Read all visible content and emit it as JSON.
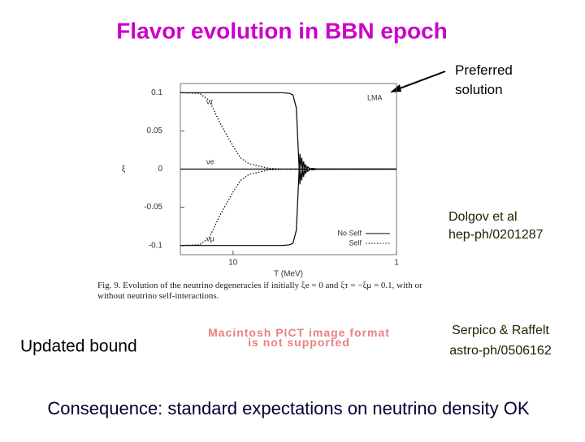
{
  "title": "Flavor evolution in BBN epoch",
  "note": "Preferred solution",
  "refs": [
    {
      "authors": "Dolgov et al",
      "id": "hep-ph/0201287"
    },
    {
      "authors": "Serpico & Raffelt",
      "id": "astro-ph/0506162"
    }
  ],
  "left_label": "Updated bound",
  "placeholder": "Macintosh PICT image format is not supported",
  "conclusion": "Consequence: standard expectations on neutrino density OK",
  "figure": {
    "caption": "Fig. 9. Evolution of the neutrino degeneracies if initially ξe = 0 and ξτ = −ξμ = 0.1, with or without neutrino self-interactions.",
    "chart_data": {
      "type": "line",
      "xlabel": "T (MeV)",
      "ylabel": "ξ",
      "log_x": true,
      "xlim": [
        21,
        1
      ],
      "xticks": [
        10,
        1
      ],
      "ylim": [
        -0.112,
        0.112
      ],
      "yticks": [
        0.1,
        0.05,
        0,
        -0.05,
        -0.1
      ],
      "x": [
        21,
        16,
        14,
        12,
        10,
        9,
        8,
        6,
        5,
        4.5,
        4.3,
        4.1,
        4.0,
        3.9,
        3.8,
        3.7,
        3.6,
        3.5,
        3.3,
        3,
        2.5,
        2,
        1.5,
        1
      ],
      "series": [
        {
          "name": "No Self",
          "color": "#000000",
          "dash": "solid"
        },
        {
          "name": "Self",
          "color": "#000000",
          "dash": "dotted"
        }
      ],
      "curves": [
        {
          "label": "LMA",
          "style": 0,
          "values": [
            0.1,
            0.1,
            0.1,
            0.1,
            0.1,
            0.1,
            0.1,
            0.1,
            0.1,
            0.099,
            0.097,
            0.08,
            0.03,
            -0.02,
            0.015,
            -0.01,
            0.006,
            -0.003,
            0.001,
            0,
            0,
            0,
            0,
            0
          ]
        },
        {
          "label": null,
          "style": 0,
          "values": [
            -0.1,
            -0.1,
            -0.1,
            -0.1,
            -0.1,
            -0.1,
            -0.1,
            -0.1,
            -0.1,
            -0.099,
            -0.097,
            -0.08,
            -0.03,
            0.02,
            -0.015,
            0.01,
            -0.006,
            0.003,
            -0.001,
            0,
            0,
            0,
            0,
            0
          ]
        },
        {
          "label": "ντ",
          "style": 1,
          "values": [
            0.1,
            0.099,
            0.09,
            0.06,
            0.03,
            0.015,
            0.007,
            0.001,
            0,
            0,
            0,
            0,
            0,
            0,
            0,
            0,
            0,
            0,
            0,
            0,
            0,
            0,
            0,
            0
          ]
        },
        {
          "label": "νμ",
          "style": 1,
          "values": [
            -0.1,
            -0.099,
            -0.09,
            -0.06,
            -0.03,
            -0.015,
            -0.007,
            -0.001,
            0,
            0,
            0,
            0,
            0,
            0,
            0,
            0,
            0,
            0,
            0,
            0,
            0,
            0,
            0,
            0
          ]
        },
        {
          "label": "νe",
          "style": 0,
          "values": [
            0,
            0,
            0,
            0,
            0,
            0,
            0,
            0,
            0,
            0,
            0,
            0,
            0,
            0,
            0,
            0,
            0,
            0,
            0,
            0,
            0,
            0,
            0,
            0
          ]
        }
      ]
    }
  }
}
